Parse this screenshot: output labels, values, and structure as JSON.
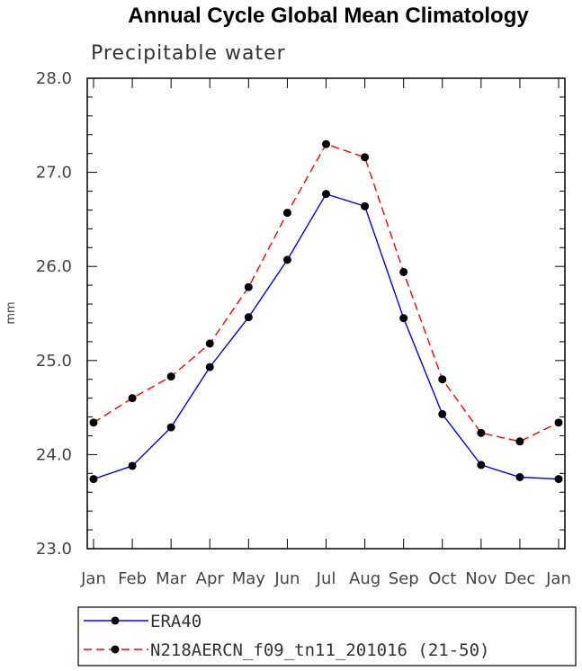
{
  "chart_data": {
    "type": "line",
    "title": "Annual Cycle Global Mean Climatology",
    "subtitle": "Precipitable water",
    "xlabel": "",
    "ylabel": "mm",
    "categories": [
      "Jan",
      "Feb",
      "Mar",
      "Apr",
      "May",
      "Jun",
      "Jul",
      "Aug",
      "Sep",
      "Oct",
      "Nov",
      "Dec",
      "Jan"
    ],
    "ylim": [
      23.0,
      28.0
    ],
    "yticks": [
      "23.0",
      "24.0",
      "25.0",
      "26.0",
      "27.0",
      "28.0"
    ],
    "series": [
      {
        "name": "ERA40",
        "color": "#0000ff",
        "dash": "solid",
        "values": [
          23.74,
          23.88,
          24.29,
          24.93,
          25.46,
          26.07,
          26.77,
          26.64,
          25.45,
          24.43,
          23.89,
          23.76,
          23.74
        ]
      },
      {
        "name": "N218AERCN_f09_tn11_201016 (21-50)",
        "color": "#ff0000",
        "dash": "dashed",
        "values": [
          24.34,
          24.6,
          24.83,
          25.18,
          25.78,
          26.57,
          27.3,
          27.16,
          25.94,
          24.8,
          24.23,
          24.14,
          24.34
        ]
      }
    ],
    "legend_position": "bottom"
  }
}
